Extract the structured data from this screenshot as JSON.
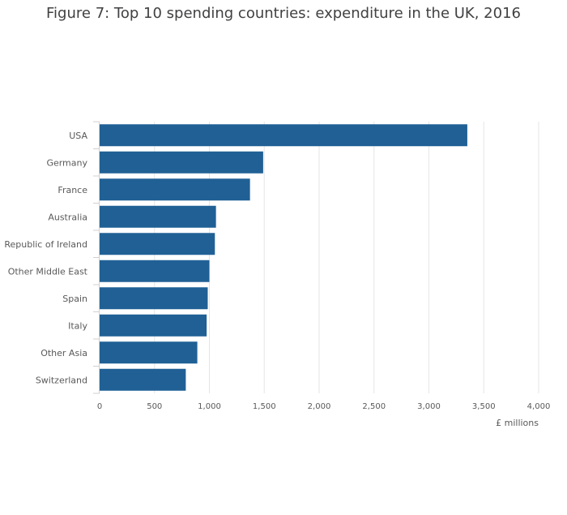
{
  "chart_data": {
    "type": "bar",
    "orientation": "horizontal",
    "title": "Figure 7: Top 10 spending countries: expenditure in the UK, 2016",
    "categories": [
      "USA",
      "Germany",
      "France",
      "Australia",
      "Republic of Ireland",
      "Other Middle East",
      "Spain",
      "Italy",
      "Other Asia",
      "Switzerland"
    ],
    "values": [
      3350,
      1490,
      1370,
      1060,
      1050,
      1000,
      985,
      975,
      890,
      785
    ],
    "xlabel": "£ millions",
    "ylabel": "",
    "xlim": [
      0,
      4000
    ],
    "ticks": [
      0,
      500,
      1000,
      1500,
      2000,
      2500,
      3000,
      3500,
      4000
    ],
    "tick_labels": [
      "0",
      "500",
      "1,000",
      "1,500",
      "2,000",
      "2,500",
      "3,000",
      "3,500",
      "4,000"
    ],
    "grid": true,
    "bar_color": "#206095"
  }
}
